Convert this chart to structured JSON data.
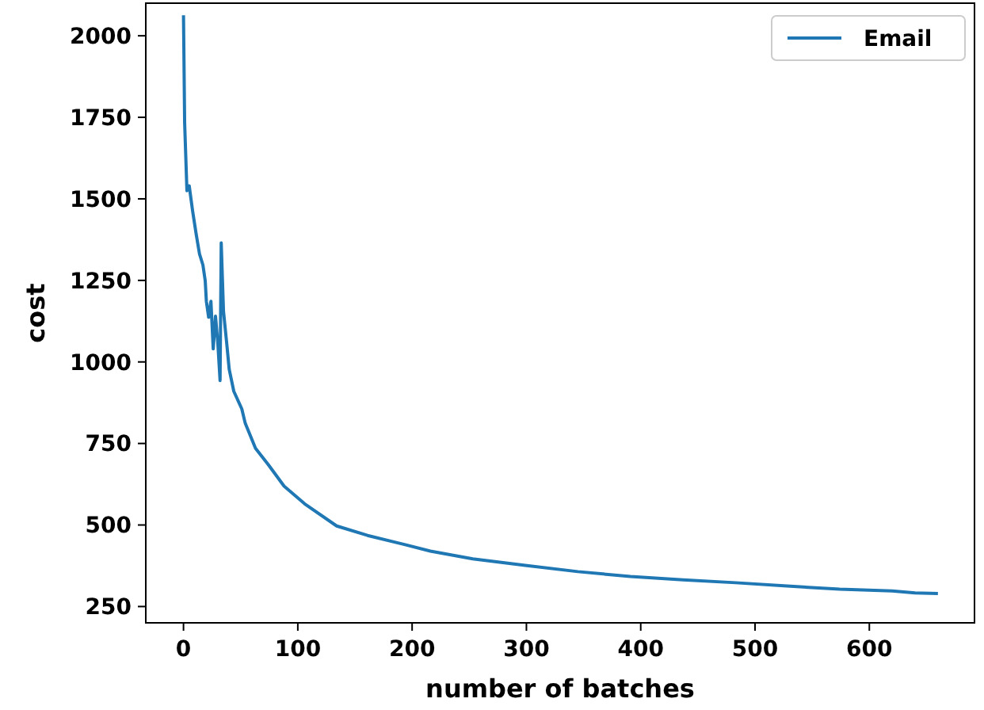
{
  "chart_data": {
    "type": "line",
    "xlabel": "number of batches",
    "ylabel": "cost",
    "legend": "top right",
    "xlim": [
      -33,
      692
    ],
    "ylim": [
      200,
      2100
    ],
    "xticks": [
      0,
      100,
      200,
      300,
      400,
      500,
      600
    ],
    "yticks": [
      250,
      500,
      750,
      1000,
      1250,
      1500,
      1750,
      2000
    ],
    "series": [
      {
        "name": "Email",
        "color": "#1f77b4",
        "x": [
          0,
          1,
          3,
          5,
          8,
          11,
          14,
          17,
          19,
          20,
          22,
          24,
          26,
          28,
          30,
          32,
          33,
          35,
          38,
          40,
          44,
          51,
          54,
          63,
          74,
          88,
          106,
          134,
          161,
          189,
          216,
          253,
          299,
          345,
          391,
          437,
          483,
          528,
          574,
          620,
          640,
          660
        ],
        "values": [
          2063,
          1733,
          1525,
          1540,
          1462,
          1394,
          1331,
          1297,
          1249,
          1186,
          1137,
          1186,
          1040,
          1140,
          1060,
          943,
          1365,
          1155,
          1050,
          977,
          910,
          856,
          812,
          735,
          686,
          619,
          565,
          497,
          468,
          444,
          420,
          396,
          376,
          357,
          342,
          332,
          323,
          313,
          303,
          298,
          292,
          290
        ]
      }
    ]
  }
}
